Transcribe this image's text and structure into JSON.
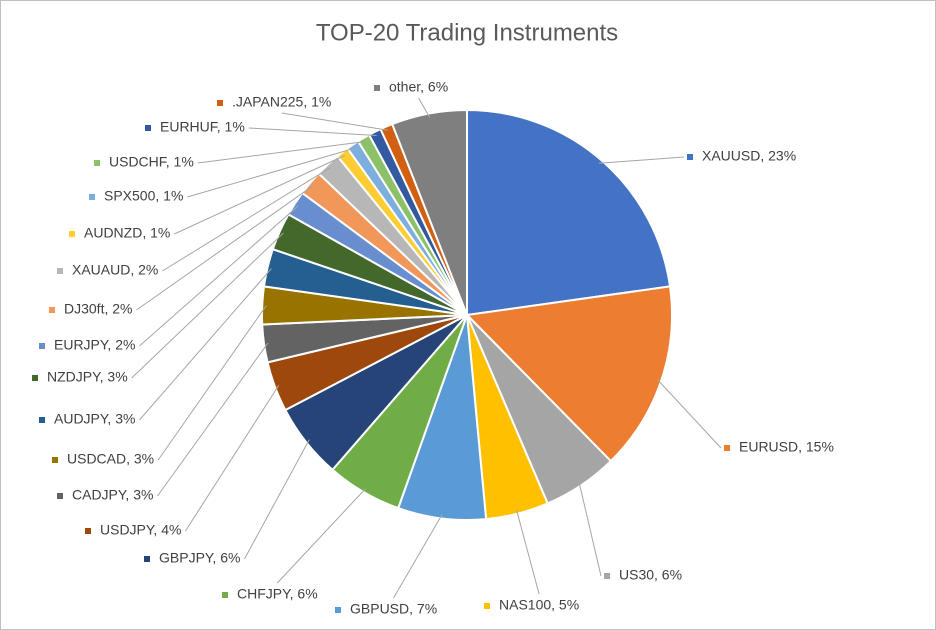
{
  "chart_data": {
    "type": "pie",
    "title": "TOP-20 Trading Instruments",
    "categories": [
      "XAUUSD, 23%",
      "EURUSD, 15%",
      "US30, 6%",
      "NAS100, 5%",
      "GBPUSD, 7%",
      "CHFJPY, 6%",
      "GBPJPY, 6%",
      "USDJPY, 4%",
      "CADJPY, 3%",
      "USDCAD, 3%",
      "AUDJPY, 3%",
      "NZDJPY, 3%",
      "EURJPY, 2%",
      "DJ30ft, 2%",
      "XAUAUD, 2%",
      "AUDNZD, 1%",
      "SPX500, 1%",
      "USDCHF, 1%",
      "EURHUF, 1%",
      ".JAPAN225, 1%",
      "other, 6%"
    ],
    "values": [
      23,
      15,
      6,
      5,
      7,
      6,
      6,
      4,
      3,
      3,
      3,
      3,
      2,
      2,
      2,
      1,
      1,
      1,
      1,
      1,
      6
    ],
    "colors": [
      "#4472c4",
      "#ed7d31",
      "#a5a5a5",
      "#ffc000",
      "#5b9bd5",
      "#70ad47",
      "#264478",
      "#9e480e",
      "#636363",
      "#997300",
      "#255e91",
      "#43682b",
      "#698ed0",
      "#f1975a",
      "#b7b7b7",
      "#ffcd33",
      "#7cafdd",
      "#8cc168",
      "#335aa1",
      "#d26012",
      "#7f7f7f"
    ]
  }
}
